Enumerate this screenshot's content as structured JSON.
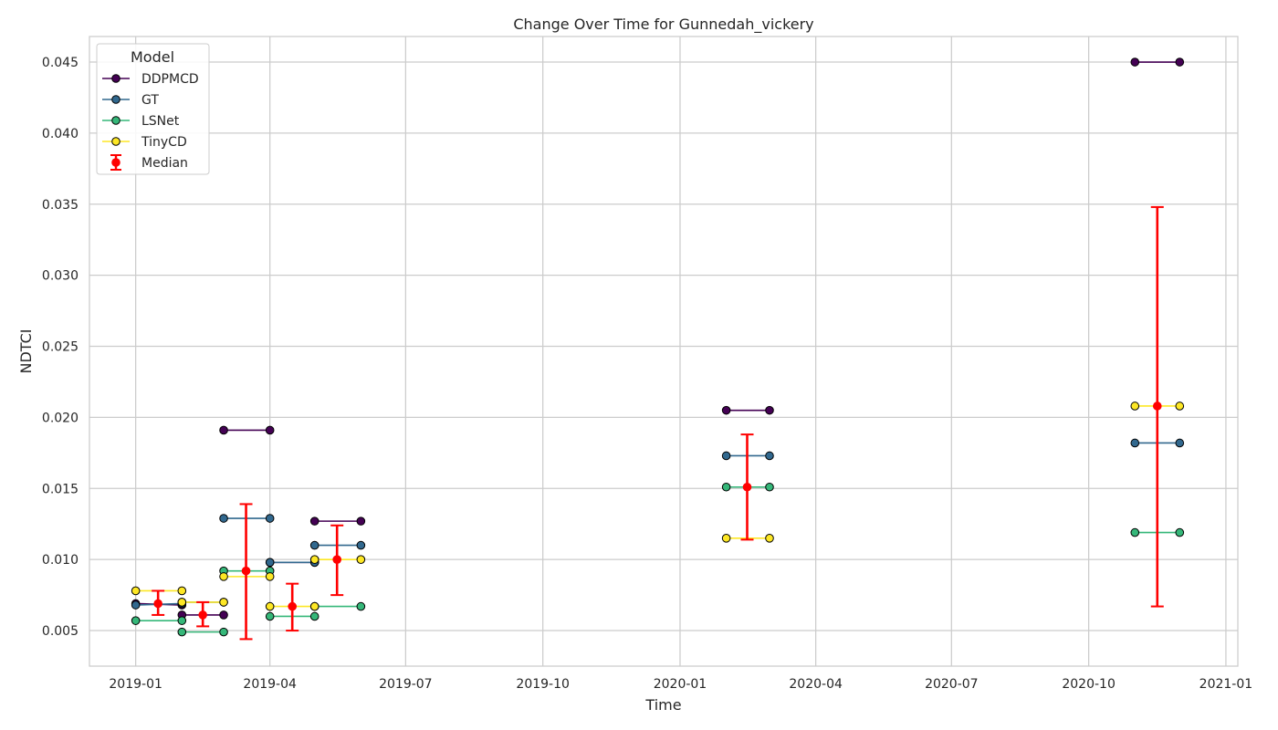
{
  "chart_data": {
    "type": "line",
    "title": "Change Over Time for Gunnedah_vickery",
    "xlabel": "Time",
    "ylabel": "NDTCI",
    "grid": true,
    "legend_position": "top-left",
    "legend_title": "Model",
    "xlim": [
      "2018-12-01",
      "2021-01-09"
    ],
    "ylim": [
      0.0025,
      0.0468
    ],
    "x_ticks": [
      "2019-01",
      "2019-04",
      "2019-07",
      "2019-10",
      "2020-01",
      "2020-04",
      "2020-07",
      "2020-10",
      "2021-01"
    ],
    "y_ticks": [
      "0.005",
      "0.010",
      "0.015",
      "0.020",
      "0.025",
      "0.030",
      "0.035",
      "0.040",
      "0.045"
    ],
    "series": [
      {
        "name": "DDPMCD",
        "color": "#440154",
        "segments": [
          {
            "x": [
              "2019-01-01",
              "2019-02-01"
            ],
            "y": [
              0.0069,
              0.0068
            ]
          },
          {
            "x": [
              "2019-02-01",
              "2019-03-01"
            ],
            "y": [
              0.0061,
              0.0061
            ]
          },
          {
            "x": [
              "2019-03-01",
              "2019-04-01"
            ],
            "y": [
              0.0191,
              0.0191
            ]
          },
          {
            "x": [
              "2019-04-01",
              "2019-05-01"
            ],
            "y": [
              0.0098,
              0.0098
            ]
          },
          {
            "x": [
              "2019-05-01",
              "2019-06-01"
            ],
            "y": [
              0.0127,
              0.0127
            ]
          },
          {
            "x": [
              "2020-02-01",
              "2020-03-01"
            ],
            "y": [
              0.0205,
              0.0205
            ]
          },
          {
            "x": [
              "2020-11-01",
              "2020-12-01"
            ],
            "y": [
              0.045,
              0.045
            ]
          }
        ]
      },
      {
        "name": "GT",
        "color": "#31688e",
        "segments": [
          {
            "x": [
              "2019-01-01",
              "2019-02-01"
            ],
            "y": [
              0.0068,
              0.0069
            ]
          },
          {
            "x": [
              "2019-02-01",
              "2019-03-01"
            ],
            "y": [
              0.007,
              0.007
            ]
          },
          {
            "x": [
              "2019-03-01",
              "2019-04-01"
            ],
            "y": [
              0.0129,
              0.0129
            ]
          },
          {
            "x": [
              "2019-04-01",
              "2019-05-01"
            ],
            "y": [
              0.0098,
              0.0098
            ]
          },
          {
            "x": [
              "2019-05-01",
              "2019-06-01"
            ],
            "y": [
              0.011,
              0.011
            ]
          },
          {
            "x": [
              "2020-02-01",
              "2020-03-01"
            ],
            "y": [
              0.0173,
              0.0173
            ]
          },
          {
            "x": [
              "2020-11-01",
              "2020-12-01"
            ],
            "y": [
              0.0182,
              0.0182
            ]
          }
        ]
      },
      {
        "name": "LSNet",
        "color": "#35b779",
        "segments": [
          {
            "x": [
              "2019-01-01",
              "2019-02-01"
            ],
            "y": [
              0.0057,
              0.0057
            ]
          },
          {
            "x": [
              "2019-02-01",
              "2019-03-01"
            ],
            "y": [
              0.0049,
              0.0049
            ]
          },
          {
            "x": [
              "2019-03-01",
              "2019-04-01"
            ],
            "y": [
              0.0092,
              0.0092
            ]
          },
          {
            "x": [
              "2019-04-01",
              "2019-05-01"
            ],
            "y": [
              0.006,
              0.006
            ]
          },
          {
            "x": [
              "2019-05-01",
              "2019-06-01"
            ],
            "y": [
              0.0067,
              0.0067
            ]
          },
          {
            "x": [
              "2020-02-01",
              "2020-03-01"
            ],
            "y": [
              0.0151,
              0.0151
            ]
          },
          {
            "x": [
              "2020-11-01",
              "2020-12-01"
            ],
            "y": [
              0.0119,
              0.0119
            ]
          }
        ]
      },
      {
        "name": "TinyCD",
        "color": "#fde725",
        "segments": [
          {
            "x": [
              "2019-01-01",
              "2019-02-01"
            ],
            "y": [
              0.0078,
              0.0078
            ]
          },
          {
            "x": [
              "2019-02-01",
              "2019-03-01"
            ],
            "y": [
              0.007,
              0.007
            ]
          },
          {
            "x": [
              "2019-03-01",
              "2019-04-01"
            ],
            "y": [
              0.0088,
              0.0088
            ]
          },
          {
            "x": [
              "2019-04-01",
              "2019-05-01"
            ],
            "y": [
              0.0067,
              0.0067
            ]
          },
          {
            "x": [
              "2019-05-01",
              "2019-06-01"
            ],
            "y": [
              0.01,
              0.01
            ]
          },
          {
            "x": [
              "2020-02-01",
              "2020-03-01"
            ],
            "y": [
              0.0115,
              0.0115
            ]
          },
          {
            "x": [
              "2020-11-01",
              "2020-12-01"
            ],
            "y": [
              0.0208,
              0.0208
            ]
          }
        ]
      }
    ],
    "median": {
      "name": "Median",
      "color": "#ff0000",
      "points": [
        {
          "x": "2019-01-16",
          "y": 0.0069,
          "low": 0.0061,
          "high": 0.0078
        },
        {
          "x": "2019-02-15",
          "y": 0.0061,
          "low": 0.0053,
          "high": 0.007
        },
        {
          "x": "2019-03-16",
          "y": 0.0092,
          "low": 0.0044,
          "high": 0.0139
        },
        {
          "x": "2019-04-16",
          "y": 0.0067,
          "low": 0.005,
          "high": 0.0083
        },
        {
          "x": "2019-05-16",
          "y": 0.01,
          "low": 0.0075,
          "high": 0.0124
        },
        {
          "x": "2020-02-15",
          "y": 0.0151,
          "low": 0.0114,
          "high": 0.0188
        },
        {
          "x": "2020-11-16",
          "y": 0.0208,
          "low": 0.0067,
          "high": 0.0348
        }
      ]
    }
  }
}
